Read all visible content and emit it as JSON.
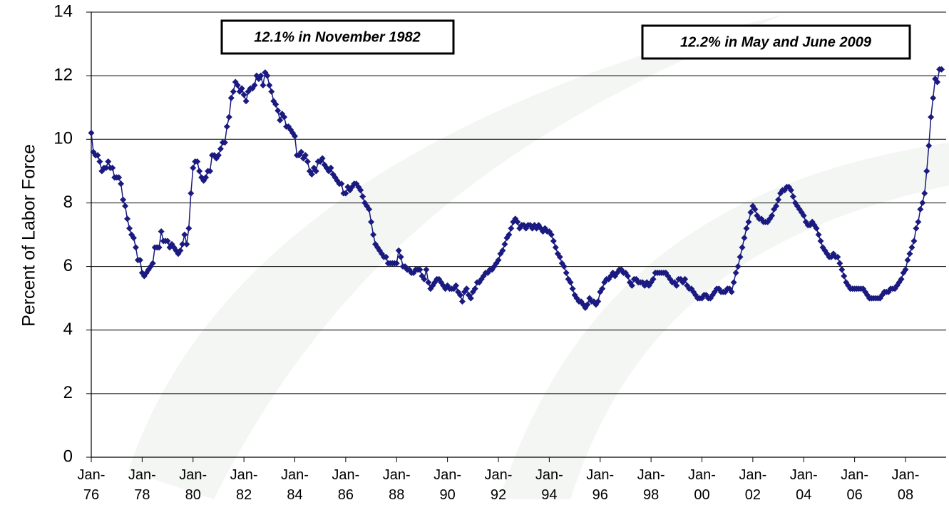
{
  "chart_data": {
    "type": "line",
    "ylabel": "Percent of Labor Force",
    "annotations": [
      "12.1% in November 1982",
      "12.2% in May and June 2009"
    ],
    "color": "#1a1a80",
    "grid": true,
    "ylim": [
      0,
      14
    ],
    "yticks": [
      0,
      2,
      4,
      6,
      8,
      10,
      12,
      14
    ],
    "categories": [
      "Jan-76",
      null,
      null,
      null,
      null,
      null,
      null,
      null,
      null,
      null,
      null,
      null,
      null,
      null,
      null,
      null,
      null,
      null,
      null,
      null,
      null,
      null,
      null,
      null,
      "Jan-78",
      null,
      null,
      null,
      null,
      null,
      null,
      null,
      null,
      null,
      null,
      null,
      null,
      null,
      null,
      null,
      null,
      null,
      null,
      null,
      null,
      null,
      null,
      null,
      "Jan-80",
      null,
      null,
      null,
      null,
      null,
      null,
      null,
      null,
      null,
      null,
      null,
      null,
      null,
      null,
      null,
      null,
      null,
      null,
      null,
      null,
      null,
      null,
      null,
      "Jan-82",
      null,
      null,
      null,
      null,
      null,
      null,
      null,
      null,
      null,
      null,
      null,
      null,
      null,
      null,
      null,
      null,
      null,
      null,
      null,
      null,
      null,
      null,
      null,
      "Jan-84",
      null,
      null,
      null,
      null,
      null,
      null,
      null,
      null,
      null,
      null,
      null,
      null,
      null,
      null,
      null,
      null,
      null,
      null,
      null,
      null,
      null,
      null,
      null,
      "Jan-86",
      null,
      null,
      null,
      null,
      null,
      null,
      null,
      null,
      null,
      null,
      null,
      null,
      null,
      null,
      null,
      null,
      null,
      null,
      null,
      null,
      null,
      null,
      null,
      "Jan-88",
      null,
      null,
      null,
      null,
      null,
      null,
      null,
      null,
      null,
      null,
      null,
      null,
      null,
      null,
      null,
      null,
      null,
      null,
      null,
      null,
      null,
      null,
      null,
      "Jan-90",
      null,
      null,
      null,
      null,
      null,
      null,
      null,
      null,
      null,
      null,
      null,
      null,
      null,
      null,
      null,
      null,
      null,
      null,
      null,
      null,
      null,
      null,
      null,
      "Jan-92",
      null,
      null,
      null,
      null,
      null,
      null,
      null,
      null,
      null,
      null,
      null,
      null,
      null,
      null,
      null,
      null,
      null,
      null,
      null,
      null,
      null,
      null,
      null,
      "Jan-94",
      null,
      null,
      null,
      null,
      null,
      null,
      null,
      null,
      null,
      null,
      null,
      null,
      null,
      null,
      null,
      null,
      null,
      null,
      null,
      null,
      null,
      null,
      null,
      "Jan-96",
      null,
      null,
      null,
      null,
      null,
      null,
      null,
      null,
      null,
      null,
      null,
      null,
      null,
      null,
      null,
      null,
      null,
      null,
      null,
      null,
      null,
      null,
      null,
      "Jan-98",
      null,
      null,
      null,
      null,
      null,
      null,
      null,
      null,
      null,
      null,
      null,
      null,
      null,
      null,
      null,
      null,
      null,
      null,
      null,
      null,
      null,
      null,
      null,
      "Jan-00",
      null,
      null,
      null,
      null,
      null,
      null,
      null,
      null,
      null,
      null,
      null,
      null,
      null,
      null,
      null,
      null,
      null,
      null,
      null,
      null,
      null,
      null,
      null,
      "Jan-02",
      null,
      null,
      null,
      null,
      null,
      null,
      null,
      null,
      null,
      null,
      null,
      null,
      null,
      null,
      null,
      null,
      null,
      null,
      null,
      null,
      null,
      null,
      null,
      "Jan-04",
      null,
      null,
      null,
      null,
      null,
      null,
      null,
      null,
      null,
      null,
      null,
      null,
      null,
      null,
      null,
      null,
      null,
      null,
      null,
      null,
      null,
      null,
      null,
      "Jan-06",
      null,
      null,
      null,
      null,
      null,
      null,
      null,
      null,
      null,
      null,
      null,
      null,
      null,
      null,
      null,
      null,
      null,
      null,
      null,
      null,
      null,
      null,
      null,
      "Jan-08",
      null,
      null,
      null,
      null,
      null,
      null,
      null,
      null,
      null,
      null,
      null,
      null,
      null,
      null,
      null,
      null,
      null
    ],
    "values": [
      10.2,
      9.6,
      9.5,
      9.5,
      9.3,
      9.0,
      9.1,
      9.1,
      9.3,
      9.1,
      9.1,
      8.8,
      8.8,
      8.8,
      8.6,
      8.1,
      7.9,
      7.5,
      7.2,
      7.0,
      6.9,
      6.6,
      6.2,
      6.2,
      5.8,
      5.7,
      5.8,
      5.9,
      6.0,
      6.1,
      6.6,
      6.6,
      6.6,
      7.1,
      6.8,
      6.8,
      6.8,
      6.6,
      6.7,
      6.6,
      6.5,
      6.4,
      6.5,
      6.7,
      7.0,
      6.7,
      7.2,
      8.3,
      9.1,
      9.3,
      9.3,
      9.0,
      8.8,
      8.7,
      8.8,
      9.0,
      9.0,
      9.5,
      9.5,
      9.4,
      9.5,
      9.7,
      9.9,
      9.9,
      10.4,
      10.7,
      11.3,
      11.5,
      11.8,
      11.7,
      11.5,
      11.6,
      11.4,
      11.2,
      11.5,
      11.6,
      11.6,
      11.7,
      12.0,
      11.9,
      12.0,
      11.7,
      12.1,
      12.0,
      11.7,
      11.5,
      11.2,
      11.1,
      10.9,
      10.6,
      10.8,
      10.7,
      10.4,
      10.4,
      10.3,
      10.2,
      10.1,
      9.5,
      9.5,
      9.6,
      9.4,
      9.5,
      9.3,
      9.0,
      8.9,
      9.1,
      9.0,
      9.3,
      9.3,
      9.4,
      9.2,
      9.1,
      9.0,
      9.1,
      8.9,
      8.8,
      8.7,
      8.6,
      8.6,
      8.3,
      8.3,
      8.5,
      8.4,
      8.5,
      8.6,
      8.6,
      8.5,
      8.4,
      8.2,
      8.0,
      7.9,
      7.8,
      7.4,
      7.0,
      6.7,
      6.6,
      6.5,
      6.4,
      6.3,
      6.3,
      6.1,
      6.1,
      6.1,
      6.1,
      6.1,
      6.5,
      6.3,
      6.0,
      6.0,
      5.9,
      5.9,
      5.8,
      5.8,
      5.9,
      5.9,
      5.9,
      5.7,
      5.6,
      5.9,
      5.5,
      5.3,
      5.4,
      5.5,
      5.6,
      5.6,
      5.5,
      5.4,
      5.3,
      5.4,
      5.3,
      5.3,
      5.3,
      5.4,
      5.2,
      5.1,
      4.9,
      5.2,
      5.3,
      5.1,
      5.0,
      5.2,
      5.3,
      5.5,
      5.5,
      5.6,
      5.7,
      5.8,
      5.8,
      5.9,
      5.9,
      6.0,
      6.1,
      6.2,
      6.4,
      6.5,
      6.7,
      6.9,
      7.0,
      7.2,
      7.4,
      7.5,
      7.4,
      7.2,
      7.3,
      7.3,
      7.2,
      7.3,
      7.3,
      7.2,
      7.3,
      7.2,
      7.3,
      7.2,
      7.1,
      7.2,
      7.1,
      7.1,
      7.0,
      6.8,
      6.6,
      6.4,
      6.3,
      6.1,
      6.0,
      5.8,
      5.6,
      5.5,
      5.3,
      5.1,
      5.0,
      4.9,
      4.9,
      4.8,
      4.7,
      4.8,
      5.0,
      4.9,
      4.9,
      4.8,
      4.9,
      5.2,
      5.3,
      5.5,
      5.6,
      5.6,
      5.7,
      5.8,
      5.7,
      5.8,
      5.9,
      5.9,
      5.8,
      5.8,
      5.7,
      5.5,
      5.4,
      5.6,
      5.6,
      5.5,
      5.5,
      5.5,
      5.4,
      5.5,
      5.4,
      5.5,
      5.6,
      5.8,
      5.8,
      5.8,
      5.8,
      5.8,
      5.8,
      5.7,
      5.6,
      5.5,
      5.5,
      5.4,
      5.6,
      5.6,
      5.5,
      5.6,
      5.4,
      5.3,
      5.3,
      5.2,
      5.1,
      5.0,
      5.0,
      5.0,
      5.1,
      5.1,
      5.0,
      5.0,
      5.1,
      5.2,
      5.3,
      5.3,
      5.2,
      5.2,
      5.2,
      5.3,
      5.3,
      5.2,
      5.5,
      5.8,
      6.0,
      6.3,
      6.6,
      6.9,
      7.2,
      7.4,
      7.7,
      7.9,
      7.8,
      7.6,
      7.5,
      7.5,
      7.4,
      7.4,
      7.4,
      7.5,
      7.6,
      7.8,
      7.9,
      8.1,
      8.3,
      8.4,
      8.4,
      8.5,
      8.5,
      8.4,
      8.2,
      8.0,
      7.9,
      7.8,
      7.7,
      7.6,
      7.4,
      7.3,
      7.3,
      7.4,
      7.3,
      7.2,
      7.0,
      6.8,
      6.6,
      6.5,
      6.4,
      6.3,
      6.3,
      6.4,
      6.3,
      6.3,
      6.1,
      5.9,
      5.7,
      5.5,
      5.4,
      5.3,
      5.3,
      5.3,
      5.3,
      5.3,
      5.3,
      5.3,
      5.2,
      5.1,
      5.0,
      5.0,
      5.0,
      5.0,
      5.0,
      5.0,
      5.1,
      5.2,
      5.2,
      5.2,
      5.3,
      5.3,
      5.3,
      5.4,
      5.5,
      5.6,
      5.8,
      5.9,
      6.2,
      6.4,
      6.6,
      6.8,
      7.2,
      7.4,
      7.8,
      8.0,
      8.3,
      9.0,
      9.8,
      10.7,
      11.3,
      11.9,
      11.8,
      12.2,
      12.2
    ]
  }
}
